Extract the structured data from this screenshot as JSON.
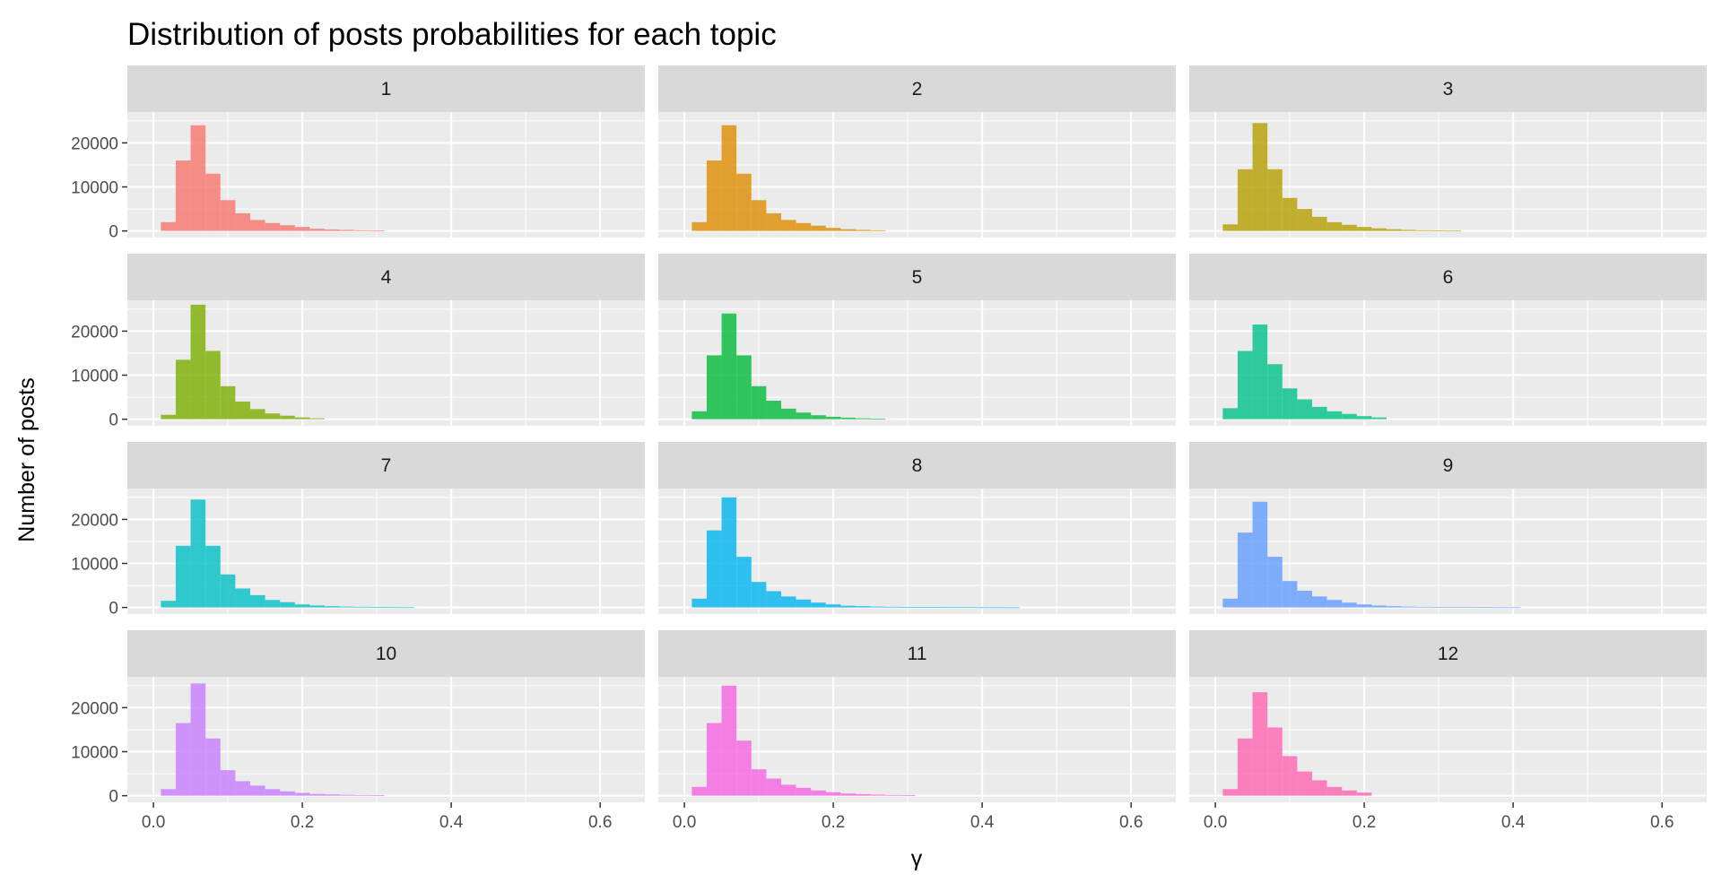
{
  "chart_data": {
    "type": "bar",
    "subtype": "faceted-histogram",
    "title": "Distribution of posts probabilities for each topic",
    "xlabel": "γ",
    "ylabel": "Number of posts",
    "xlim": [
      -0.035,
      0.66
    ],
    "ylim": [
      -1500,
      27000
    ],
    "x_ticks": [
      0.0,
      0.2,
      0.4,
      0.6
    ],
    "x_tick_labels": [
      "0.0",
      "0.2",
      "0.4",
      "0.6"
    ],
    "y_ticks": [
      0,
      10000,
      20000
    ],
    "y_tick_labels": [
      "0",
      "10000",
      "20000"
    ],
    "grid": true,
    "legend": "none",
    "facet_layout": "4 rows x 3 columns",
    "bin_width": 0.02,
    "bin_start": 0.01,
    "facets": [
      {
        "label": "1",
        "color": "#F8766D",
        "values": [
          2000,
          16000,
          24000,
          13000,
          7000,
          4000,
          2500,
          1800,
          1300,
          900,
          500,
          350,
          250,
          150,
          80
        ]
      },
      {
        "label": "2",
        "color": "#DE8C00",
        "values": [
          2000,
          16000,
          24000,
          13000,
          7000,
          4000,
          2500,
          1800,
          1200,
          700,
          400,
          250,
          150
        ]
      },
      {
        "label": "3",
        "color": "#B79F00",
        "values": [
          1500,
          14000,
          24500,
          14000,
          7500,
          5000,
          3200,
          2000,
          1400,
          900,
          600,
          400,
          250,
          150,
          100,
          60
        ]
      },
      {
        "label": "4",
        "color": "#7CAE00",
        "values": [
          1000,
          13500,
          26000,
          15500,
          7500,
          4000,
          2300,
          1300,
          800,
          400,
          200
        ]
      },
      {
        "label": "5",
        "color": "#00BA38",
        "values": [
          1800,
          14500,
          24000,
          14500,
          7500,
          4200,
          2400,
          1500,
          900,
          550,
          350,
          200,
          100
        ]
      },
      {
        "label": "6",
        "color": "#00C08B",
        "values": [
          2500,
          15500,
          21500,
          12500,
          7000,
          4500,
          2800,
          1800,
          1200,
          700,
          400
        ]
      },
      {
        "label": "7",
        "color": "#00BFC4",
        "values": [
          1500,
          14000,
          24500,
          14000,
          7500,
          4300,
          2800,
          1700,
          1200,
          700,
          450,
          300,
          200,
          150,
          100,
          80,
          60
        ]
      },
      {
        "label": "8",
        "color": "#00B4F0",
        "values": [
          2000,
          17500,
          25000,
          11500,
          5800,
          3700,
          2500,
          1800,
          1100,
          700,
          400,
          300,
          200,
          150,
          120,
          100,
          90,
          80,
          70,
          60,
          50,
          40
        ]
      },
      {
        "label": "9",
        "color": "#619CFF",
        "values": [
          2000,
          17000,
          24000,
          11500,
          6000,
          3800,
          2500,
          1700,
          1100,
          700,
          450,
          300,
          200,
          150,
          120,
          100,
          90,
          80,
          60,
          50
        ]
      },
      {
        "label": "10",
        "color": "#C77CFF",
        "values": [
          1500,
          16500,
          25500,
          13000,
          5800,
          3300,
          2300,
          1500,
          1000,
          650,
          400,
          300,
          200,
          150,
          100
        ]
      },
      {
        "label": "11",
        "color": "#F564E3",
        "values": [
          2000,
          16500,
          25000,
          12500,
          6000,
          3900,
          2500,
          1800,
          1200,
          800,
          500,
          350,
          250,
          150,
          100
        ]
      },
      {
        "label": "12",
        "color": "#FF64B0",
        "values": [
          1500,
          13000,
          23500,
          15500,
          9000,
          5500,
          3500,
          2000,
          1200,
          700
        ]
      }
    ]
  }
}
